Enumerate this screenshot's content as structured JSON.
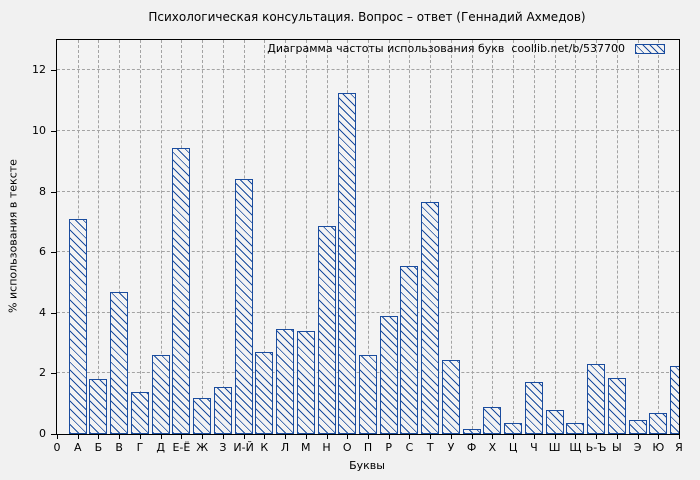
{
  "title": "Психологическая консультация. Вопрос – ответ (Геннадий Ахмедов)",
  "colors": {
    "bar_blue": "#1a4c9e",
    "figure_background": "#f1f1f1",
    "plot_background": "#f3f3f3",
    "grid": "#a3a3a3",
    "axis": "#000000"
  },
  "chart_data": {
    "type": "bar",
    "title": "Психологическая консультация. Вопрос – ответ (Геннадий Ахмедов)",
    "legend": "Диаграмма частоты использования букв  coollib.net/b/537700",
    "legend_position": "top-right-inside",
    "xlabel": "Буквы",
    "ylabel": "% использования в тексте",
    "origin_tick_label": "0",
    "categories": [
      "А",
      "Б",
      "В",
      "Г",
      "Д",
      "Е-Ё",
      "Ж",
      "З",
      "И-Й",
      "К",
      "Л",
      "М",
      "Н",
      "О",
      "П",
      "Р",
      "С",
      "Т",
      "У",
      "Ф",
      "Х",
      "Ц",
      "Ч",
      "Ш",
      "Щ",
      "Ь-Ъ",
      "Ы",
      "Э",
      "Ю",
      "Я"
    ],
    "values": [
      7.1,
      1.8,
      4.7,
      1.4,
      2.6,
      9.45,
      1.2,
      1.55,
      8.4,
      2.7,
      3.45,
      3.4,
      6.85,
      11.25,
      2.6,
      3.9,
      5.55,
      7.65,
      2.45,
      0.15,
      0.9,
      0.35,
      1.7,
      0.8,
      0.35,
      2.3,
      1.85,
      0.45,
      0.7,
      2.25
    ],
    "ylim": [
      0,
      13
    ],
    "yticks": [
      0,
      2,
      4,
      6,
      8,
      10,
      12
    ],
    "grid": true,
    "bar_style": "diagonal-hatch"
  }
}
